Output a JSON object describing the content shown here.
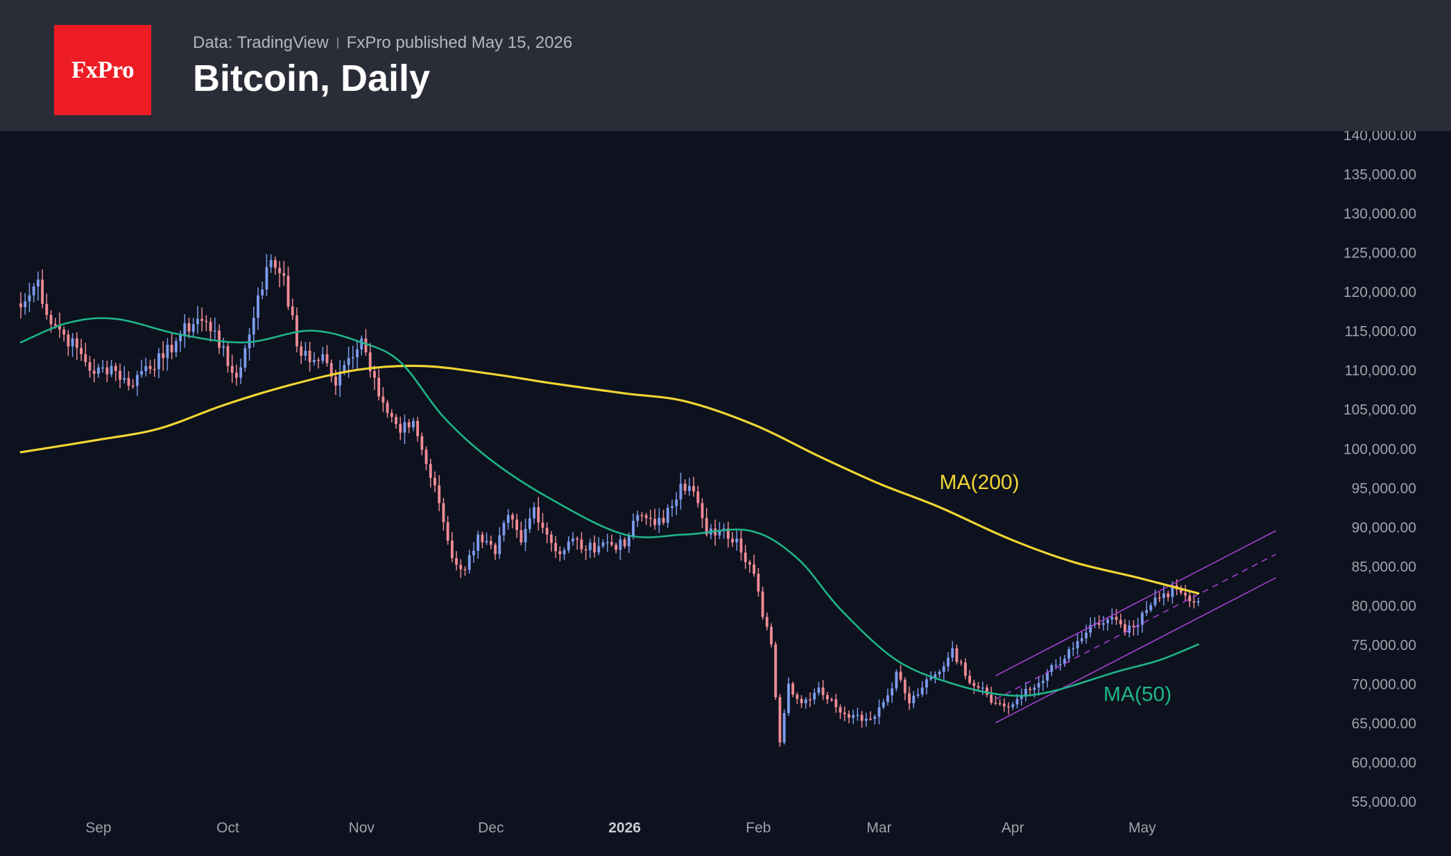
{
  "header": {
    "logo_text": "FxPro",
    "data_source": "Data: TradingView",
    "published": "FxPro published May 15, 2026",
    "title": "Bitcoin, Daily"
  },
  "colors": {
    "background": "#0d121e",
    "header_bg": "#2a2d37",
    "logo_bg": "#ee1c24",
    "bull_candle": "#7d9bec",
    "bear_candle": "#f08b95",
    "ma200": "#f2d534",
    "ma50": "#1fb58a",
    "channel": "#a63fd0",
    "axis_text": "#9ea3ad"
  },
  "chart_data": {
    "type": "candlestick",
    "title": "Bitcoin, Daily",
    "ylim": [
      52000,
      140000
    ],
    "grid": false,
    "yticks": [
      140000,
      135000,
      130000,
      125000,
      120000,
      115000,
      110000,
      105000,
      100000,
      95000,
      90000,
      85000,
      80000,
      75000,
      70000,
      65000,
      60000,
      55000
    ],
    "ytick_labels": [
      "140,000.00",
      "135,000.00",
      "130,000.00",
      "125,000.00",
      "120,000.00",
      "115,000.00",
      "110,000.00",
      "105,000.00",
      "100,000.00",
      "95,000.00",
      "90,000.00",
      "85,000.00",
      "80,000.00",
      "75,000.00",
      "70,000.00",
      "65,000.00",
      "60,000.00",
      "55,000.00"
    ],
    "xlim": [
      "2025-08-14",
      "2026-06-12"
    ],
    "xticks": [
      {
        "label": "Sep",
        "date": "2025-09-01",
        "bold": false
      },
      {
        "label": "Oct",
        "date": "2025-10-01",
        "bold": false
      },
      {
        "label": "Nov",
        "date": "2025-11-01",
        "bold": false
      },
      {
        "label": "Dec",
        "date": "2025-12-01",
        "bold": false
      },
      {
        "label": "2026",
        "date": "2026-01-01",
        "bold": true
      },
      {
        "label": "Feb",
        "date": "2026-02-01",
        "bold": false
      },
      {
        "label": "Mar",
        "date": "2026-03-01",
        "bold": false
      },
      {
        "label": "Apr",
        "date": "2026-04-01",
        "bold": false
      },
      {
        "label": "May",
        "date": "2026-05-01",
        "bold": false
      }
    ],
    "close_anchors": [
      [
        "2025-08-14",
        118000
      ],
      [
        "2025-08-16",
        119500
      ],
      [
        "2025-08-18",
        121500
      ],
      [
        "2025-08-20",
        117000
      ],
      [
        "2025-08-24",
        114500
      ],
      [
        "2025-08-28",
        112000
      ],
      [
        "2025-08-31",
        109500
      ],
      [
        "2025-09-04",
        110500
      ],
      [
        "2025-09-08",
        108000
      ],
      [
        "2025-09-12",
        110500
      ],
      [
        "2025-09-16",
        111500
      ],
      [
        "2025-09-20",
        114500
      ],
      [
        "2025-09-24",
        116500
      ],
      [
        "2025-09-28",
        115000
      ],
      [
        "2025-10-01",
        110500
      ],
      [
        "2025-10-03",
        109000
      ],
      [
        "2025-10-06",
        114500
      ],
      [
        "2025-10-08",
        119500
      ],
      [
        "2025-10-11",
        124000
      ],
      [
        "2025-10-14",
        122000
      ],
      [
        "2025-10-17",
        113000
      ],
      [
        "2025-10-20",
        111000
      ],
      [
        "2025-10-23",
        112000
      ],
      [
        "2025-10-26",
        108000
      ],
      [
        "2025-10-29",
        111500
      ],
      [
        "2025-11-01",
        114000
      ],
      [
        "2025-11-04",
        109000
      ],
      [
        "2025-11-07",
        104500
      ],
      [
        "2025-11-10",
        102000
      ],
      [
        "2025-11-13",
        103500
      ],
      [
        "2025-11-16",
        98000
      ],
      [
        "2025-11-19",
        93000
      ],
      [
        "2025-11-22",
        86000
      ],
      [
        "2025-11-25",
        84500
      ],
      [
        "2025-11-28",
        89000
      ],
      [
        "2025-12-02",
        86500
      ],
      [
        "2025-12-05",
        91500
      ],
      [
        "2025-12-08",
        88000
      ],
      [
        "2025-12-11",
        92500
      ],
      [
        "2025-12-14",
        89000
      ],
      [
        "2025-12-17",
        86500
      ],
      [
        "2025-12-20",
        88500
      ],
      [
        "2025-12-23",
        87000
      ],
      [
        "2025-12-27",
        88000
      ],
      [
        "2026-01-01",
        87500
      ],
      [
        "2026-01-04",
        91500
      ],
      [
        "2026-01-07",
        91000
      ],
      [
        "2026-01-10",
        90500
      ],
      [
        "2026-01-14",
        95500
      ],
      [
        "2026-01-17",
        94500
      ],
      [
        "2026-01-20",
        89000
      ],
      [
        "2026-01-23",
        89500
      ],
      [
        "2026-01-27",
        88500
      ],
      [
        "2026-01-31",
        84000
      ],
      [
        "2026-02-02",
        78500
      ],
      [
        "2026-02-04",
        75000
      ],
      [
        "2026-02-06",
        62500
      ],
      [
        "2026-02-08",
        70000
      ],
      [
        "2026-02-11",
        67500
      ],
      [
        "2026-02-15",
        69500
      ],
      [
        "2026-02-19",
        67000
      ],
      [
        "2026-02-23",
        66000
      ],
      [
        "2026-02-27",
        65500
      ],
      [
        "2026-03-03",
        68500
      ],
      [
        "2026-03-05",
        71500
      ],
      [
        "2026-03-08",
        67500
      ],
      [
        "2026-03-11",
        69500
      ],
      [
        "2026-03-15",
        71500
      ],
      [
        "2026-03-18",
        74500
      ],
      [
        "2026-03-21",
        71000
      ],
      [
        "2026-03-25",
        69500
      ],
      [
        "2026-03-28",
        67500
      ],
      [
        "2026-03-31",
        67000
      ],
      [
        "2026-04-03",
        68500
      ],
      [
        "2026-04-06",
        69500
      ],
      [
        "2026-04-09",
        71500
      ],
      [
        "2026-04-12",
        72500
      ],
      [
        "2026-04-15",
        74500
      ],
      [
        "2026-04-18",
        76500
      ],
      [
        "2026-04-21",
        77500
      ],
      [
        "2026-04-24",
        78500
      ],
      [
        "2026-04-27",
        76500
      ],
      [
        "2026-04-30",
        77500
      ],
      [
        "2026-05-03",
        80000
      ],
      [
        "2026-05-06",
        81500
      ],
      [
        "2026-05-09",
        82000
      ],
      [
        "2026-05-12",
        80500
      ],
      [
        "2026-05-14",
        80500
      ]
    ],
    "ma_lines": [
      {
        "name": "MA(200)",
        "color": "#f2d534",
        "points": [
          [
            "2025-08-14",
            99500
          ],
          [
            "2025-08-31",
            101000
          ],
          [
            "2025-09-15",
            102500
          ],
          [
            "2025-09-30",
            105500
          ],
          [
            "2025-10-15",
            108000
          ],
          [
            "2025-10-31",
            110000
          ],
          [
            "2025-11-15",
            110500
          ],
          [
            "2025-12-01",
            109500
          ],
          [
            "2025-12-15",
            108300
          ],
          [
            "2026-01-01",
            107000
          ],
          [
            "2026-01-15",
            106000
          ],
          [
            "2026-01-31",
            103000
          ],
          [
            "2026-02-15",
            99000
          ],
          [
            "2026-03-01",
            95500
          ],
          [
            "2026-03-15",
            92500
          ],
          [
            "2026-03-31",
            88500
          ],
          [
            "2026-04-15",
            85500
          ],
          [
            "2026-04-30",
            83500
          ],
          [
            "2026-05-14",
            81500
          ]
        ]
      },
      {
        "name": "MA(50)",
        "color": "#1fb58a",
        "points": [
          [
            "2025-08-14",
            113500
          ],
          [
            "2025-08-25",
            116000
          ],
          [
            "2025-09-05",
            116500
          ],
          [
            "2025-09-20",
            114500
          ],
          [
            "2025-10-05",
            113500
          ],
          [
            "2025-10-20",
            115000
          ],
          [
            "2025-11-01",
            113500
          ],
          [
            "2025-11-10",
            111000
          ],
          [
            "2025-11-20",
            104000
          ],
          [
            "2025-12-01",
            98500
          ],
          [
            "2025-12-15",
            93500
          ],
          [
            "2026-01-01",
            89000
          ],
          [
            "2026-01-15",
            89000
          ],
          [
            "2026-01-30",
            89500
          ],
          [
            "2026-02-10",
            86000
          ],
          [
            "2026-02-20",
            79500
          ],
          [
            "2026-03-05",
            73000
          ],
          [
            "2026-03-18",
            70000
          ],
          [
            "2026-03-31",
            68500
          ],
          [
            "2026-04-10",
            69000
          ],
          [
            "2026-04-25",
            71500
          ],
          [
            "2026-05-05",
            73000
          ],
          [
            "2026-05-14",
            75000
          ]
        ]
      }
    ],
    "channel": {
      "color": "#a63fd0",
      "upper": [
        [
          "2026-03-28",
          71000
        ],
        [
          "2026-06-01",
          89500
        ]
      ],
      "lower": [
        [
          "2026-03-28",
          65000
        ],
        [
          "2026-06-01",
          83500
        ]
      ],
      "middle": [
        [
          "2026-03-28",
          68000
        ],
        [
          "2026-06-01",
          86500
        ]
      ]
    },
    "annotations": [
      {
        "text": "MA(200)",
        "color": "#f2d534",
        "date": "2026-03-15",
        "value": 94800
      },
      {
        "text": "MA(50)",
        "color": "#1fb58a",
        "date": "2026-04-22",
        "value": 67800
      }
    ]
  }
}
